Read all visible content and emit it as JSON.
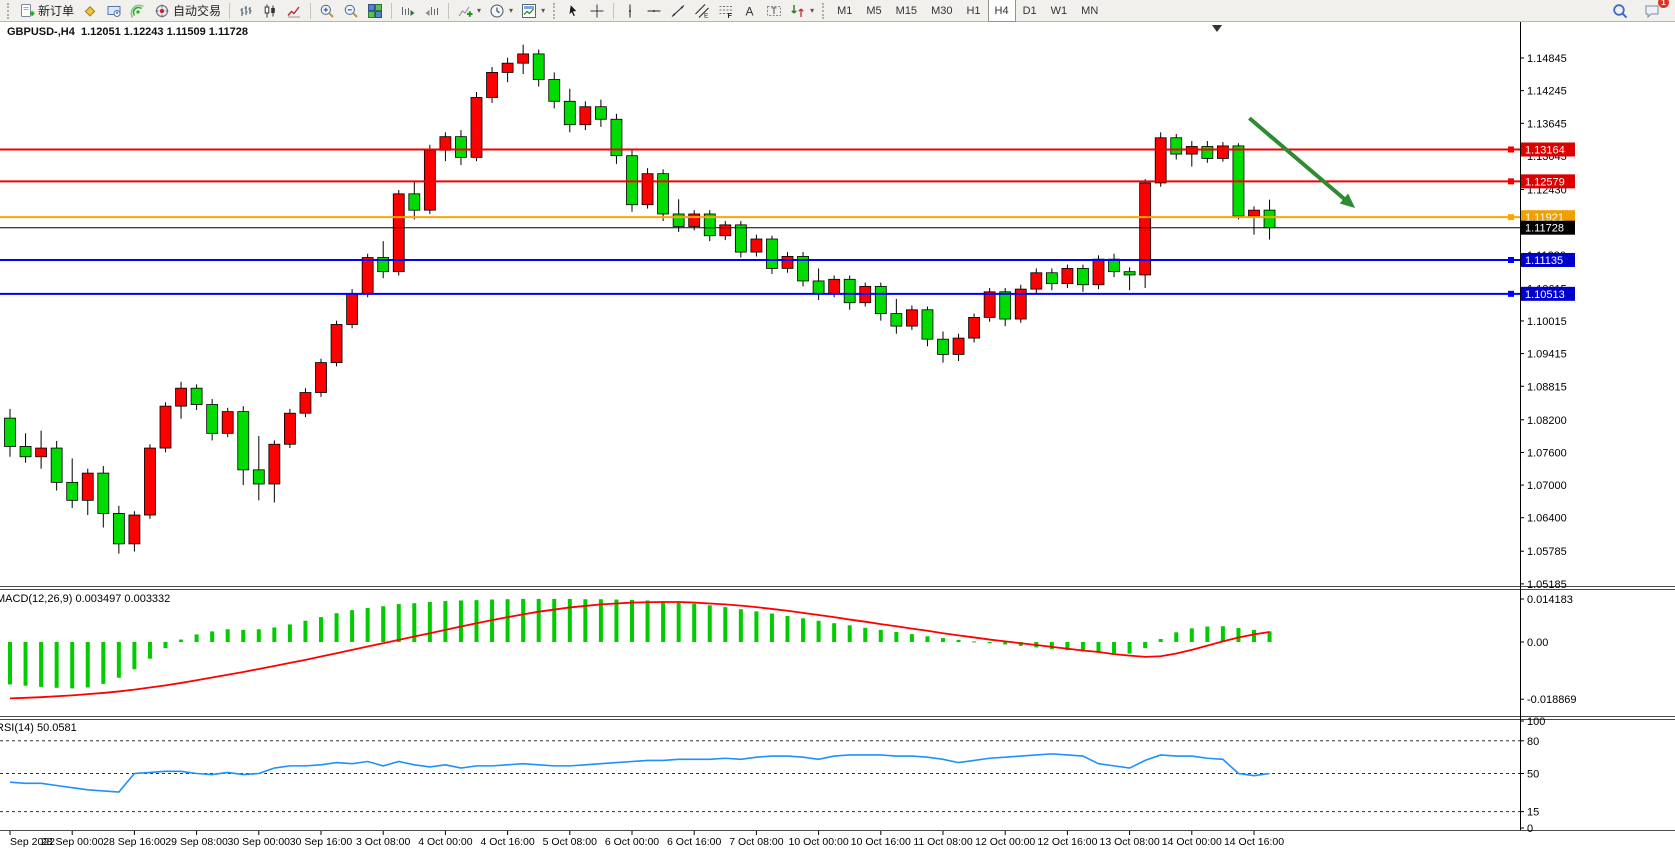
{
  "toolbar": {
    "groups": [
      {
        "name": "trade",
        "buttons": [
          {
            "name": "new-order",
            "label": "新订单"
          },
          {
            "name": "market-watch"
          },
          {
            "name": "data-folder"
          },
          {
            "name": "signals"
          },
          {
            "name": "auto-trading",
            "label": "自动交易"
          }
        ]
      },
      {
        "name": "chart-type",
        "buttons": [
          {
            "name": "chart-bars"
          },
          {
            "name": "chart-candles"
          },
          {
            "name": "chart-line"
          }
        ]
      },
      {
        "name": "zoom",
        "buttons": [
          {
            "name": "zoom-in"
          },
          {
            "name": "zoom-out"
          },
          {
            "name": "tile-windows"
          }
        ]
      },
      {
        "name": "scroll",
        "buttons": [
          {
            "name": "scroll-to-end"
          },
          {
            "name": "auto-scroll"
          }
        ]
      },
      {
        "name": "objects",
        "buttons": [
          {
            "name": "indicators-add",
            "dropdown": true
          },
          {
            "name": "periods-clock",
            "dropdown": true
          },
          {
            "name": "templates",
            "dropdown": true
          }
        ]
      },
      {
        "name": "pointer",
        "buttons": [
          {
            "name": "cursor"
          },
          {
            "name": "crosshair"
          }
        ]
      },
      {
        "name": "draw",
        "buttons": [
          {
            "name": "vline"
          },
          {
            "name": "hline"
          },
          {
            "name": "trendline"
          },
          {
            "name": "channel"
          },
          {
            "name": "fibonacci"
          },
          {
            "name": "text-a"
          },
          {
            "name": "text-label"
          },
          {
            "name": "shapes",
            "dropdown": true
          }
        ]
      }
    ],
    "timeframes": {
      "items": [
        "M1",
        "M5",
        "M15",
        "M30",
        "H1",
        "H4",
        "D1",
        "W1",
        "MN"
      ],
      "active": "H4"
    },
    "right": [
      {
        "name": "search"
      },
      {
        "name": "chat",
        "badge": "1"
      }
    ]
  },
  "chart": {
    "title_line": "GBPUSD-,H4  1.12051 1.12243 1.11509 1.11728",
    "symbol": "GBPUSD-",
    "timeframe": "H4",
    "open": "1.12051",
    "high": "1.12243",
    "low": "1.11509",
    "close": "1.11728"
  },
  "indicators_text": {
    "macd": "MACD(12,26,9) 0.003497 0.003332",
    "rsi": "RSI(14) 50.0581"
  },
  "price_axis": [
    "1.14845",
    "1.14245",
    "1.13645",
    "1.13045",
    "1.12430",
    "1.11230",
    "1.10615",
    "1.10015",
    "1.09415",
    "1.08815",
    "1.08200",
    "1.07600",
    "1.07000",
    "1.06400",
    "1.05785",
    "1.05185"
  ],
  "macd_axis": [
    "0.014183",
    "0.00",
    "-0.018869"
  ],
  "rsi_axis": [
    "100",
    "80",
    "50",
    "15",
    "0"
  ],
  "hlines": [
    {
      "label": "1.13164",
      "price": 1.13164,
      "color": "#f20000",
      "width": 2,
      "badge": "#dd0000"
    },
    {
      "label": "1.12579",
      "price": 1.12579,
      "color": "#f20000",
      "width": 2,
      "badge": "#dd0000"
    },
    {
      "label": "1.11921",
      "price": 1.11921,
      "color": "#ffa500",
      "width": 2,
      "badge": "#f0a000"
    },
    {
      "label": "1.11728",
      "price": 1.11728,
      "color": "#000000",
      "width": 1,
      "badge": "#000000",
      "current": true
    },
    {
      "label": "1.11135",
      "price": 1.11135,
      "color": "#0000ff",
      "width": 2,
      "badge": "#0000cc"
    },
    {
      "label": "1.10513",
      "price": 1.10513,
      "color": "#0000ff",
      "width": 2,
      "badge": "#0000cc"
    }
  ],
  "annotations": {
    "arrow": {
      "bar_from": 79.7,
      "price_from": 1.1374,
      "bar_to": 86.5,
      "price_to": 1.1209,
      "color": "#2e8b32"
    }
  },
  "chart_data": {
    "type": "candlestick",
    "title": "GBPUSD-,H4",
    "x_labels": [
      "Sep 2022",
      "28 Sep 00:00",
      "28 Sep 16:00",
      "29 Sep 08:00",
      "30 Sep 00:00",
      "30 Sep 16:00",
      "3 Oct 08:00",
      "4 Oct 00:00",
      "4 Oct 16:00",
      "5 Oct 08:00",
      "6 Oct 00:00",
      "6 Oct 16:00",
      "7 Oct 08:00",
      "10 Oct 00:00",
      "10 Oct 16:00",
      "11 Oct 08:00",
      "12 Oct 00:00",
      "12 Oct 16:00",
      "13 Oct 08:00",
      "14 Oct 00:00",
      "14 Oct 16:00"
    ],
    "bars_per_label": 4,
    "ylim": [
      1.05185,
      1.14845
    ],
    "up_color": "#fd0000",
    "down_color": "#00dc00",
    "candles": [
      [
        1.0823,
        1.084,
        1.0752,
        1.0771
      ],
      [
        1.0771,
        1.0795,
        1.0741,
        1.0752
      ],
      [
        1.0752,
        1.08,
        1.073,
        1.0768
      ],
      [
        1.0768,
        1.0781,
        1.069,
        1.0705
      ],
      [
        1.0705,
        1.0749,
        1.0658,
        1.0672
      ],
      [
        1.0672,
        1.073,
        1.0645,
        1.0722
      ],
      [
        1.0722,
        1.0735,
        1.0622,
        1.0648
      ],
      [
        1.0648,
        1.0662,
        1.0574,
        1.0592
      ],
      [
        1.0592,
        1.0652,
        1.0578,
        1.0645
      ],
      [
        1.0645,
        1.0775,
        1.0638,
        1.0768
      ],
      [
        1.0768,
        1.0852,
        1.076,
        1.0845
      ],
      [
        1.0845,
        1.089,
        1.0822,
        1.0878
      ],
      [
        1.0878,
        1.0885,
        1.0838,
        1.0848
      ],
      [
        1.0848,
        1.0858,
        1.0782,
        1.0795
      ],
      [
        1.0795,
        1.0842,
        1.0788,
        1.0835
      ],
      [
        1.0835,
        1.0845,
        1.07,
        1.0728
      ],
      [
        1.0728,
        1.079,
        1.0672,
        1.0702
      ],
      [
        1.0702,
        1.0782,
        1.0668,
        1.0775
      ],
      [
        1.0775,
        1.084,
        1.0768,
        1.0832
      ],
      [
        1.0832,
        1.0878,
        1.0825,
        1.087
      ],
      [
        1.087,
        1.0932,
        1.0862,
        1.0925
      ],
      [
        1.0925,
        1.1002,
        1.0918,
        1.0995
      ],
      [
        1.0995,
        1.106,
        1.0988,
        1.1052
      ],
      [
        1.1052,
        1.1125,
        1.1045,
        1.1118
      ],
      [
        1.1118,
        1.1148,
        1.108,
        1.1092
      ],
      [
        1.1092,
        1.1242,
        1.1085,
        1.1235
      ],
      [
        1.1235,
        1.1258,
        1.1188,
        1.1205
      ],
      [
        1.1205,
        1.1325,
        1.1198,
        1.1315
      ],
      [
        1.1315,
        1.1348,
        1.1295,
        1.134
      ],
      [
        1.134,
        1.1352,
        1.1288,
        1.1302
      ],
      [
        1.1302,
        1.1422,
        1.1295,
        1.1412
      ],
      [
        1.1412,
        1.1468,
        1.1402,
        1.1458
      ],
      [
        1.1458,
        1.1485,
        1.144,
        1.1475
      ],
      [
        1.1475,
        1.1509,
        1.1455,
        1.1492
      ],
      [
        1.1492,
        1.15,
        1.1432,
        1.1445
      ],
      [
        1.1445,
        1.1458,
        1.1392,
        1.1405
      ],
      [
        1.1405,
        1.1428,
        1.1348,
        1.1362
      ],
      [
        1.1362,
        1.1405,
        1.1352,
        1.1395
      ],
      [
        1.1395,
        1.1408,
        1.1358,
        1.1372
      ],
      [
        1.1372,
        1.1382,
        1.129,
        1.1305
      ],
      [
        1.1305,
        1.1318,
        1.1202,
        1.1215
      ],
      [
        1.1215,
        1.1282,
        1.1208,
        1.1272
      ],
      [
        1.1272,
        1.128,
        1.1185,
        1.1198
      ],
      [
        1.1198,
        1.1225,
        1.1165,
        1.1175
      ],
      [
        1.1175,
        1.1205,
        1.1168,
        1.1198
      ],
      [
        1.1198,
        1.1205,
        1.1148,
        1.1158
      ],
      [
        1.1158,
        1.1185,
        1.115,
        1.1178
      ],
      [
        1.1178,
        1.1185,
        1.1118,
        1.1128
      ],
      [
        1.1128,
        1.116,
        1.112,
        1.1152
      ],
      [
        1.1152,
        1.1158,
        1.1088,
        1.1098
      ],
      [
        1.1098,
        1.1128,
        1.109,
        1.112
      ],
      [
        1.112,
        1.1128,
        1.1065,
        1.1075
      ],
      [
        1.1075,
        1.1098,
        1.104,
        1.1052
      ],
      [
        1.1052,
        1.1085,
        1.1045,
        1.1078
      ],
      [
        1.1078,
        1.1085,
        1.1022,
        1.1035
      ],
      [
        1.1035,
        1.1072,
        1.1028,
        1.1065
      ],
      [
        1.1065,
        1.1072,
        1.1002,
        1.1015
      ],
      [
        1.1015,
        1.1042,
        1.0978,
        1.0992
      ],
      [
        1.0992,
        1.103,
        1.0985,
        1.1022
      ],
      [
        1.1022,
        1.1028,
        1.0955,
        1.0968
      ],
      [
        1.0968,
        1.0982,
        1.0925,
        1.094
      ],
      [
        1.094,
        1.0978,
        1.0928,
        1.097
      ],
      [
        1.097,
        1.1015,
        1.0962,
        1.1008
      ],
      [
        1.1008,
        1.1062,
        1.1,
        1.1055
      ],
      [
        1.1055,
        1.1062,
        1.0992,
        1.1005
      ],
      [
        1.1005,
        1.1068,
        1.0998,
        1.106
      ],
      [
        1.106,
        1.1098,
        1.1052,
        1.109
      ],
      [
        1.109,
        1.1098,
        1.1058,
        1.107
      ],
      [
        1.107,
        1.1105,
        1.1062,
        1.1098
      ],
      [
        1.1098,
        1.1105,
        1.1055,
        1.1068
      ],
      [
        1.1068,
        1.1122,
        1.106,
        1.1115
      ],
      [
        1.1115,
        1.1125,
        1.1082,
        1.1092
      ],
      [
        1.1092,
        1.11,
        1.1058,
        1.1086
      ],
      [
        1.1086,
        1.1262,
        1.1062,
        1.1255
      ],
      [
        1.1255,
        1.1348,
        1.1248,
        1.1338
      ],
      [
        1.1338,
        1.1345,
        1.1298,
        1.1308
      ],
      [
        1.1308,
        1.1332,
        1.1285,
        1.1322
      ],
      [
        1.1322,
        1.1332,
        1.1292,
        1.13
      ],
      [
        1.13,
        1.133,
        1.1294,
        1.1323
      ],
      [
        1.1323,
        1.1328,
        1.1188,
        1.1194
      ],
      [
        1.1194,
        1.1212,
        1.116,
        1.1205
      ],
      [
        1.12051,
        1.12243,
        1.11509,
        1.11728
      ]
    ],
    "indicators": [
      {
        "name": "MACD",
        "params": "12,26,9",
        "current": [
          0.003497,
          0.003332
        ],
        "ylim": [
          -0.018869,
          0.014183
        ],
        "histogram_color": "#00cc00",
        "signal_color": "#ff0000",
        "histogram": [
          -0.014,
          -0.0144,
          -0.0148,
          -0.0151,
          -0.0153,
          -0.015,
          -0.0138,
          -0.0118,
          -0.009,
          -0.0055,
          -0.002,
          0.0008,
          0.0025,
          0.0035,
          0.0042,
          0.004,
          0.0042,
          0.0048,
          0.0058,
          0.007,
          0.0082,
          0.0095,
          0.0105,
          0.0112,
          0.0118,
          0.0125,
          0.0128,
          0.0132,
          0.0135,
          0.0137,
          0.0138,
          0.014,
          0.0141,
          0.0142,
          0.0142,
          0.0142,
          0.0142,
          0.0141,
          0.0141,
          0.014,
          0.0139,
          0.0137,
          0.0134,
          0.013,
          0.0126,
          0.0121,
          0.0115,
          0.0108,
          0.0101,
          0.0094,
          0.0086,
          0.0078,
          0.007,
          0.0062,
          0.0055,
          0.0047,
          0.004,
          0.0033,
          0.0026,
          0.0019,
          0.0013,
          0.0007,
          0.0002,
          -0.0003,
          -0.0008,
          -0.0013,
          -0.0018,
          -0.0023,
          -0.0027,
          -0.0031,
          -0.0034,
          -0.0037,
          -0.0038,
          -0.002,
          0.001,
          0.0032,
          0.0045,
          0.0051,
          0.0052,
          0.0046,
          0.004,
          0.0035
        ],
        "signal": [
          -0.0186,
          -0.0184,
          -0.0182,
          -0.0179,
          -0.0176,
          -0.0172,
          -0.0168,
          -0.0163,
          -0.0157,
          -0.015,
          -0.0143,
          -0.0135,
          -0.0126,
          -0.0117,
          -0.0108,
          -0.0099,
          -0.0089,
          -0.0079,
          -0.0069,
          -0.0059,
          -0.0048,
          -0.0037,
          -0.0026,
          -0.0015,
          -0.0004,
          0.0007,
          0.0018,
          0.0029,
          0.004,
          0.0051,
          0.0062,
          0.0072,
          0.0082,
          0.0091,
          0.01,
          0.0107,
          0.0114,
          0.0119,
          0.0124,
          0.0127,
          0.013,
          0.0131,
          0.0132,
          0.0132,
          0.013,
          0.0127,
          0.0124,
          0.012,
          0.0115,
          0.0109,
          0.0103,
          0.0096,
          0.0089,
          0.0082,
          0.0074,
          0.0067,
          0.0059,
          0.0052,
          0.0044,
          0.0037,
          0.0029,
          0.0022,
          0.0015,
          0.0008,
          0.0002,
          -0.0004,
          -0.001,
          -0.0016,
          -0.0022,
          -0.0028,
          -0.0033,
          -0.004,
          -0.0045,
          -0.0049,
          -0.0047,
          -0.0038,
          -0.0026,
          -0.0012,
          0.0002,
          0.0015,
          0.0025,
          0.0033
        ]
      },
      {
        "name": "RSI",
        "params": "14",
        "current": 50.0581,
        "ylim": [
          0,
          100
        ],
        "levels": [
          80,
          50,
          15
        ],
        "line_color": "#1e90ff",
        "series": [
          42,
          41,
          41,
          39,
          37,
          35,
          34,
          33,
          50,
          51,
          52,
          52,
          50,
          49,
          51,
          49,
          50,
          55,
          57,
          57,
          58,
          60,
          59,
          61,
          57,
          61,
          58,
          56,
          58,
          55,
          57,
          57,
          58,
          59,
          58,
          57,
          57,
          58,
          59,
          60,
          61,
          62,
          62,
          63,
          63,
          63,
          64,
          63,
          65,
          66,
          66,
          65,
          63,
          66,
          67,
          67,
          67,
          66,
          66,
          65,
          63,
          60,
          62,
          64,
          65,
          66,
          67,
          68,
          67,
          66,
          59,
          57,
          55,
          62,
          67,
          66,
          66,
          64,
          63,
          50,
          48,
          50
        ]
      }
    ]
  },
  "colors": {
    "candle_up": "#fd0000",
    "candle_down": "#00dc00",
    "hline_red": "#f20000",
    "hline_orange": "#ffa500",
    "hline_blue": "#0000ff",
    "macd_histogram": "#00cc00",
    "macd_signal": "#ff0000",
    "rsi_line": "#1e90ff",
    "arrow": "#2e8b32"
  }
}
